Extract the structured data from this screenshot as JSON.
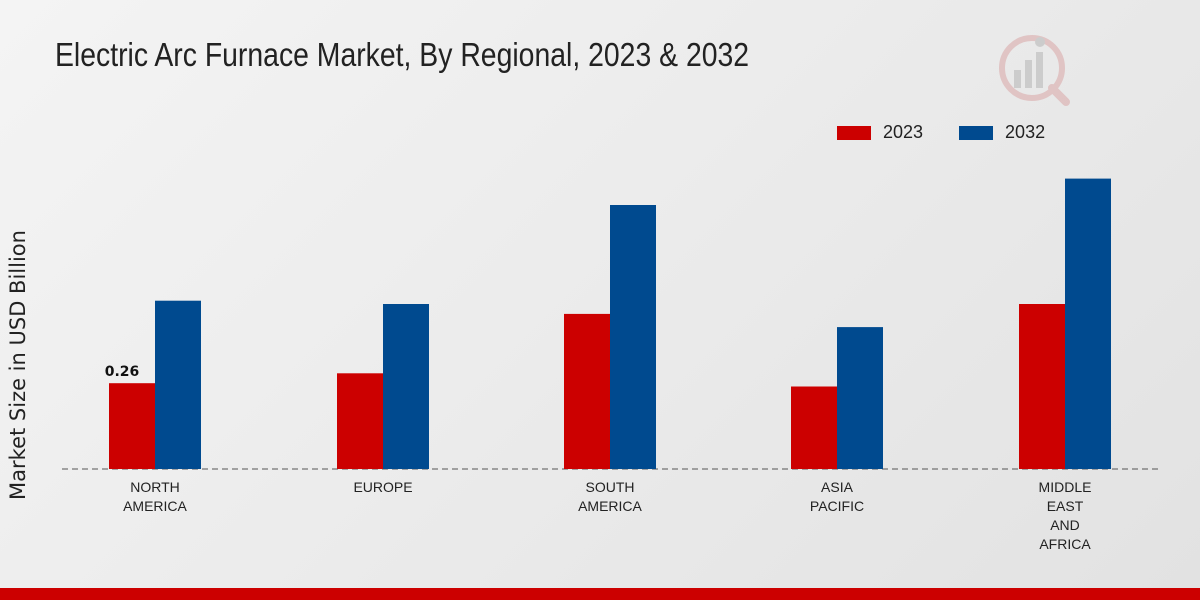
{
  "chart_data": {
    "type": "bar",
    "title": "Electric Arc Furnace Market, By Regional, 2023 & 2032",
    "xlabel": "",
    "ylabel": "Market Size in USD Billion",
    "ylim": [
      0,
      0.9
    ],
    "categories": [
      [
        "NORTH",
        "AMERICA"
      ],
      [
        "EUROPE"
      ],
      [
        "SOUTH",
        "AMERICA"
      ],
      [
        "ASIA",
        "PACIFIC"
      ],
      [
        "MIDDLE",
        "EAST",
        "AND",
        "AFRICA"
      ]
    ],
    "series": [
      {
        "name": "2023",
        "color": "#cc0000",
        "values": [
          0.26,
          0.29,
          0.47,
          0.25,
          0.5
        ]
      },
      {
        "name": "2032",
        "color": "#004a8f",
        "values": [
          0.51,
          0.5,
          0.8,
          0.43,
          0.88
        ]
      }
    ],
    "annotations": [
      {
        "series": 0,
        "index": 0,
        "text": "0.26"
      }
    ],
    "legend_position": "top-right",
    "grid": false
  },
  "colors": {
    "accent_bar": "#cc0000"
  }
}
